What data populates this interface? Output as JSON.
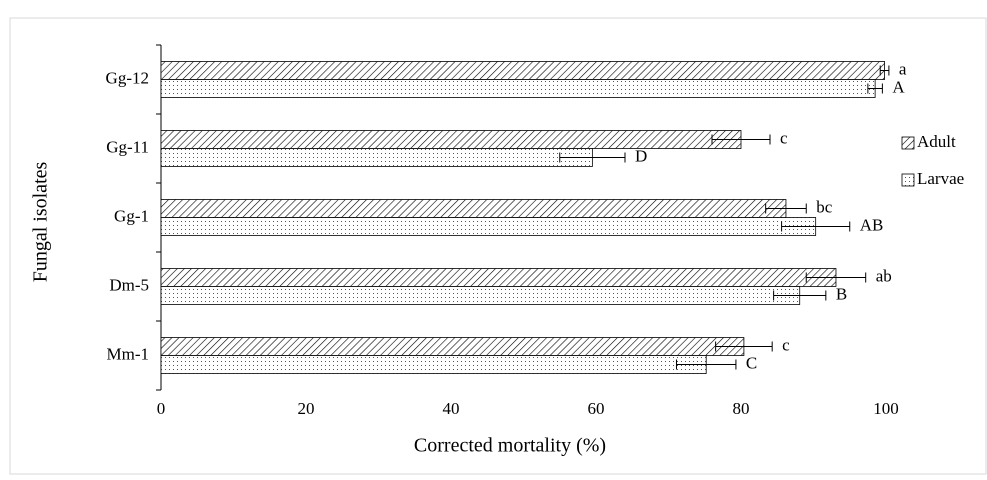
{
  "chart_data": {
    "type": "hbar",
    "x_label": "Corrected mortality (%)",
    "y_label": "Fungal isolates",
    "categories": [
      "Gg-12",
      "Gg-11",
      "Gg-1",
      "Dm-5",
      "Mm-1"
    ],
    "series": [
      {
        "name": "Adult",
        "color": "#000000",
        "pattern": "hatch",
        "values": [
          99.8,
          80,
          86.2,
          93.1,
          80.4
        ],
        "errors": [
          0.6,
          4,
          2.8,
          4.1,
          3.9
        ],
        "letters": [
          "a",
          "c",
          "bc",
          "ab",
          "c"
        ]
      },
      {
        "name": "Larvae",
        "color": "#000000",
        "pattern": "dots",
        "values": [
          98.5,
          59.5,
          90.3,
          88.1,
          75.2
        ],
        "errors": [
          1,
          4.5,
          4.7,
          3.6,
          4.1
        ],
        "letters": [
          "A",
          "D",
          "AB",
          "B",
          "C"
        ]
      }
    ],
    "xlim": [
      0,
      110
    ],
    "xticks": [
      0,
      20,
      40,
      60,
      80,
      100
    ],
    "legend": "right"
  }
}
